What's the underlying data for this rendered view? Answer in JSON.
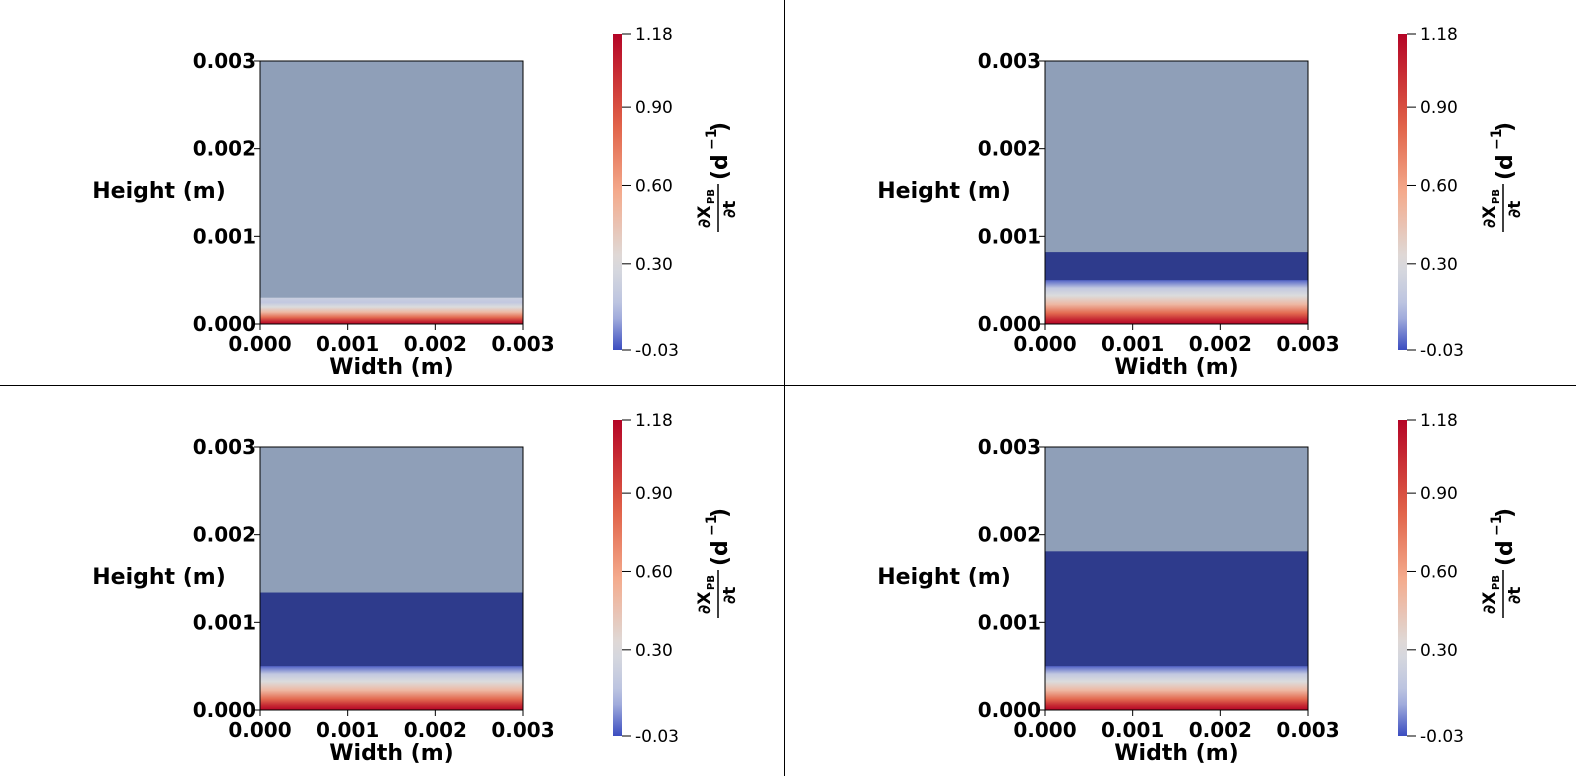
{
  "colors": {
    "background": "#ffffff",
    "empty_region": "#8f9fb8",
    "inactive_region": "#2e3b8c",
    "colormap": [
      "#3b4cc0",
      "#dcdcdc",
      "#f7a789",
      "#e05a44",
      "#b40426"
    ]
  },
  "colorbar": {
    "ticks": [
      "1.18",
      "0.90",
      "0.60",
      "0.30",
      "-0.03"
    ],
    "tick_values": [
      1.18,
      0.9,
      0.6,
      0.3,
      -0.03
    ],
    "range": [
      -0.03,
      1.18
    ],
    "title_numerator": "∂X",
    "title_subscript": "PB",
    "title_denominator": "∂t",
    "title_unit": "(d",
    "title_unit_exp": "−1",
    "title_unit_close": ")"
  },
  "axes": {
    "xlabel": "Width (m)",
    "ylabel": "Height (m)",
    "xticks": [
      "0.000",
      "0.001",
      "0.002",
      "0.003"
    ],
    "yticks": [
      "0.000",
      "0.001",
      "0.002",
      "0.003"
    ]
  },
  "chart_data": [
    {
      "type": "heatmap",
      "xlabel": "Width (m)",
      "ylabel": "Height (m)",
      "xlim": [
        0,
        0.003
      ],
      "ylim": [
        0,
        0.003
      ],
      "color_range": [
        -0.03,
        1.18
      ],
      "active_band_top": 0.0003,
      "inactive_band_top": 0.0003,
      "rate_at_bottom": 1.18
    },
    {
      "type": "heatmap",
      "xlabel": "Width (m)",
      "ylabel": "Height (m)",
      "xlim": [
        0,
        0.003
      ],
      "ylim": [
        0,
        0.003
      ],
      "color_range": [
        -0.03,
        1.18
      ],
      "active_band_top": 0.0005,
      "inactive_band_top": 0.00082,
      "rate_at_bottom": 1.18
    },
    {
      "type": "heatmap",
      "xlabel": "Width (m)",
      "ylabel": "Height (m)",
      "xlim": [
        0,
        0.003
      ],
      "ylim": [
        0,
        0.003
      ],
      "color_range": [
        -0.03,
        1.18
      ],
      "active_band_top": 0.0005,
      "inactive_band_top": 0.00134,
      "rate_at_bottom": 1.18
    },
    {
      "type": "heatmap",
      "xlabel": "Width (m)",
      "ylabel": "Height (m)",
      "xlim": [
        0,
        0.003
      ],
      "ylim": [
        0,
        0.003
      ],
      "color_range": [
        -0.03,
        1.18
      ],
      "active_band_top": 0.0005,
      "inactive_band_top": 0.00181,
      "rate_at_bottom": 1.18
    }
  ]
}
